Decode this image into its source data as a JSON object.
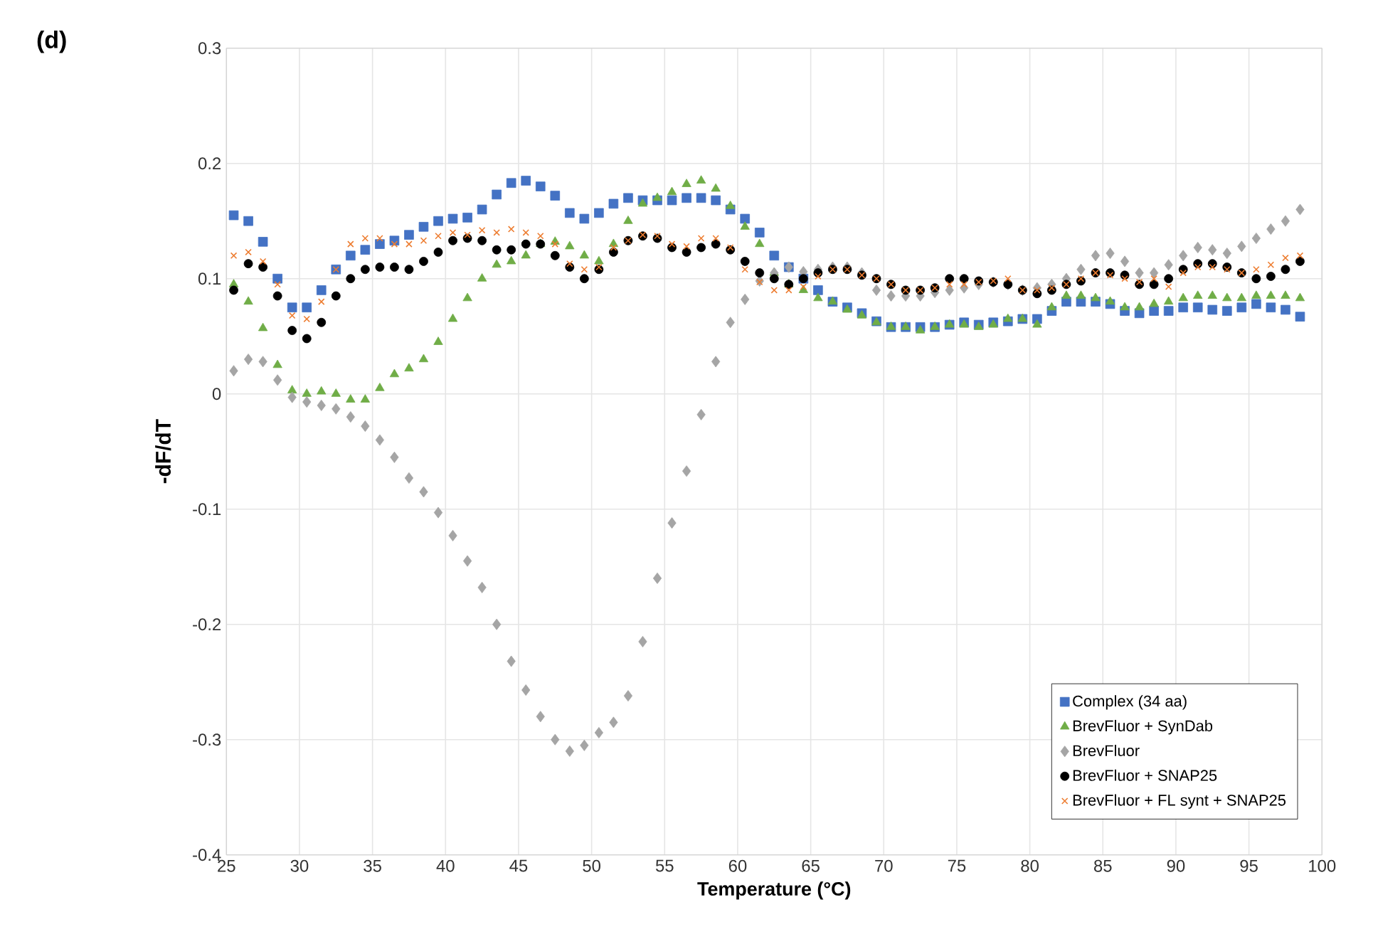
{
  "chart_data": {
    "type": "scatter",
    "annotations": [
      "(d)"
    ],
    "xlabel": "Temperature (°C)",
    "ylabel": "-dF/dT",
    "x": [
      25.5,
      26.5,
      27.5,
      28.5,
      29.5,
      30.5,
      31.5,
      32.5,
      33.5,
      34.5,
      35.5,
      36.5,
      37.5,
      38.5,
      39.5,
      40.5,
      41.5,
      42.5,
      43.5,
      44.5,
      45.5,
      46.5,
      47.5,
      48.5,
      49.5,
      50.5,
      51.5,
      52.5,
      53.5,
      54.5,
      55.5,
      56.5,
      57.5,
      58.5,
      59.5,
      60.5,
      61.5,
      62.5,
      63.5,
      64.5,
      65.5,
      66.5,
      67.5,
      68.5,
      69.5,
      70.5,
      71.5,
      72.5,
      73.5,
      74.5,
      75.5,
      76.5,
      77.5,
      78.5,
      79.5,
      80.5,
      81.5,
      82.5,
      83.5,
      84.5,
      85.5,
      86.5,
      87.5,
      88.5,
      89.5,
      90.5,
      91.5,
      92.5,
      93.5,
      94.5,
      95.5,
      96.5,
      97.5,
      98.5
    ],
    "series": [
      {
        "name": "Complex (34 aa)",
        "color": "#4472c4",
        "marker": "square",
        "values": [
          0.155,
          0.15,
          0.132,
          0.1,
          0.075,
          0.075,
          0.09,
          0.108,
          0.12,
          0.125,
          0.13,
          0.133,
          0.138,
          0.145,
          0.15,
          0.152,
          0.153,
          0.16,
          0.173,
          0.183,
          0.185,
          0.18,
          0.172,
          0.157,
          0.152,
          0.157,
          0.165,
          0.17,
          0.168,
          0.168,
          0.168,
          0.17,
          0.17,
          0.168,
          0.16,
          0.152,
          0.14,
          0.12,
          0.11,
          0.1,
          0.09,
          0.08,
          0.075,
          0.07,
          0.063,
          0.058,
          0.058,
          0.058,
          0.058,
          0.06,
          0.062,
          0.06,
          0.062,
          0.063,
          0.065,
          0.065,
          0.072,
          0.08,
          0.08,
          0.08,
          0.078,
          0.072,
          0.07,
          0.072,
          0.072,
          0.075,
          0.075,
          0.073,
          0.072,
          0.075,
          0.078,
          0.075,
          0.073,
          0.067
        ]
      },
      {
        "name": "BrevFluor + SynDab",
        "color": "#70ad47",
        "marker": "triangle",
        "values": [
          0.095,
          0.08,
          0.057,
          0.025,
          0.003,
          0.0,
          0.002,
          0.0,
          -0.005,
          -0.005,
          0.005,
          0.017,
          0.022,
          0.03,
          0.045,
          0.065,
          0.083,
          0.1,
          0.112,
          0.115,
          0.12,
          0.13,
          0.132,
          0.128,
          0.12,
          0.115,
          0.13,
          0.15,
          0.165,
          0.17,
          0.175,
          0.182,
          0.185,
          0.178,
          0.163,
          0.145,
          0.13,
          0.105,
          0.095,
          0.09,
          0.083,
          0.08,
          0.073,
          0.068,
          0.062,
          0.058,
          0.058,
          0.055,
          0.058,
          0.06,
          0.06,
          0.058,
          0.06,
          0.065,
          0.065,
          0.06,
          0.075,
          0.085,
          0.085,
          0.083,
          0.08,
          0.075,
          0.075,
          0.078,
          0.08,
          0.083,
          0.085,
          0.085,
          0.083,
          0.083,
          0.085,
          0.085,
          0.085,
          0.083
        ]
      },
      {
        "name": "BrevFluor",
        "color": "#a5a5a5",
        "marker": "diamond",
        "values": [
          0.02,
          0.03,
          0.028,
          0.012,
          -0.003,
          -0.007,
          -0.01,
          -0.013,
          -0.02,
          -0.028,
          -0.04,
          -0.055,
          -0.073,
          -0.085,
          -0.103,
          -0.123,
          -0.145,
          -0.168,
          -0.2,
          -0.232,
          -0.257,
          -0.28,
          -0.3,
          -0.31,
          -0.305,
          -0.294,
          -0.285,
          -0.262,
          -0.215,
          -0.16,
          -0.112,
          -0.067,
          -0.018,
          0.028,
          0.062,
          0.082,
          0.098,
          0.105,
          0.11,
          0.106,
          0.108,
          0.11,
          0.11,
          0.105,
          0.09,
          0.085,
          0.085,
          0.085,
          0.088,
          0.09,
          0.092,
          0.095,
          0.097,
          0.095,
          0.09,
          0.092,
          0.095,
          0.1,
          0.108,
          0.12,
          0.122,
          0.115,
          0.105,
          0.105,
          0.112,
          0.12,
          0.127,
          0.125,
          0.122,
          0.128,
          0.135,
          0.143,
          0.15,
          0.16
        ]
      },
      {
        "name": "BrevFluor + SNAP25",
        "color": "#000000",
        "marker": "circle",
        "values": [
          0.09,
          0.113,
          0.11,
          0.085,
          0.055,
          0.048,
          0.062,
          0.085,
          0.1,
          0.108,
          0.11,
          0.11,
          0.108,
          0.115,
          0.123,
          0.133,
          0.135,
          0.133,
          0.125,
          0.125,
          0.13,
          0.13,
          0.12,
          0.11,
          0.1,
          0.108,
          0.123,
          0.133,
          0.137,
          0.135,
          0.127,
          0.123,
          0.127,
          0.13,
          0.125,
          0.115,
          0.105,
          0.1,
          0.095,
          0.1,
          0.105,
          0.108,
          0.108,
          0.103,
          0.1,
          0.095,
          0.09,
          0.09,
          0.092,
          0.1,
          0.1,
          0.098,
          0.097,
          0.095,
          0.09,
          0.087,
          0.09,
          0.095,
          0.098,
          0.105,
          0.105,
          0.103,
          0.095,
          0.095,
          0.1,
          0.108,
          0.113,
          0.113,
          0.11,
          0.105,
          0.1,
          0.102,
          0.108,
          0.115
        ]
      },
      {
        "name": "BrevFluor + FL synt + SNAP25",
        "color": "#ed7d31",
        "marker": "cross",
        "values": [
          0.12,
          0.123,
          0.115,
          0.095,
          0.068,
          0.065,
          0.08,
          0.108,
          0.13,
          0.135,
          0.135,
          0.13,
          0.13,
          0.133,
          0.137,
          0.14,
          0.138,
          0.142,
          0.14,
          0.143,
          0.14,
          0.137,
          0.13,
          0.113,
          0.108,
          0.11,
          0.127,
          0.133,
          0.138,
          0.137,
          0.13,
          0.128,
          0.135,
          0.135,
          0.127,
          0.108,
          0.097,
          0.09,
          0.09,
          0.093,
          0.102,
          0.108,
          0.108,
          0.103,
          0.1,
          0.095,
          0.09,
          0.09,
          0.092,
          0.095,
          0.095,
          0.097,
          0.098,
          0.1,
          0.09,
          0.09,
          0.092,
          0.095,
          0.1,
          0.105,
          0.103,
          0.1,
          0.097,
          0.1,
          0.093,
          0.105,
          0.11,
          0.11,
          0.108,
          0.105,
          0.108,
          0.112,
          0.118,
          0.12
        ]
      }
    ],
    "xlim": [
      25,
      100
    ],
    "xticks": [
      25,
      30,
      35,
      40,
      45,
      50,
      55,
      60,
      65,
      70,
      75,
      80,
      85,
      90,
      95,
      100
    ],
    "ylim": [
      -0.4,
      0.3
    ],
    "yticks": [
      -0.4,
      -0.3,
      -0.2,
      -0.1,
      0,
      0.1,
      0.2,
      0.3
    ],
    "grid": true,
    "legend": "bottom right"
  }
}
